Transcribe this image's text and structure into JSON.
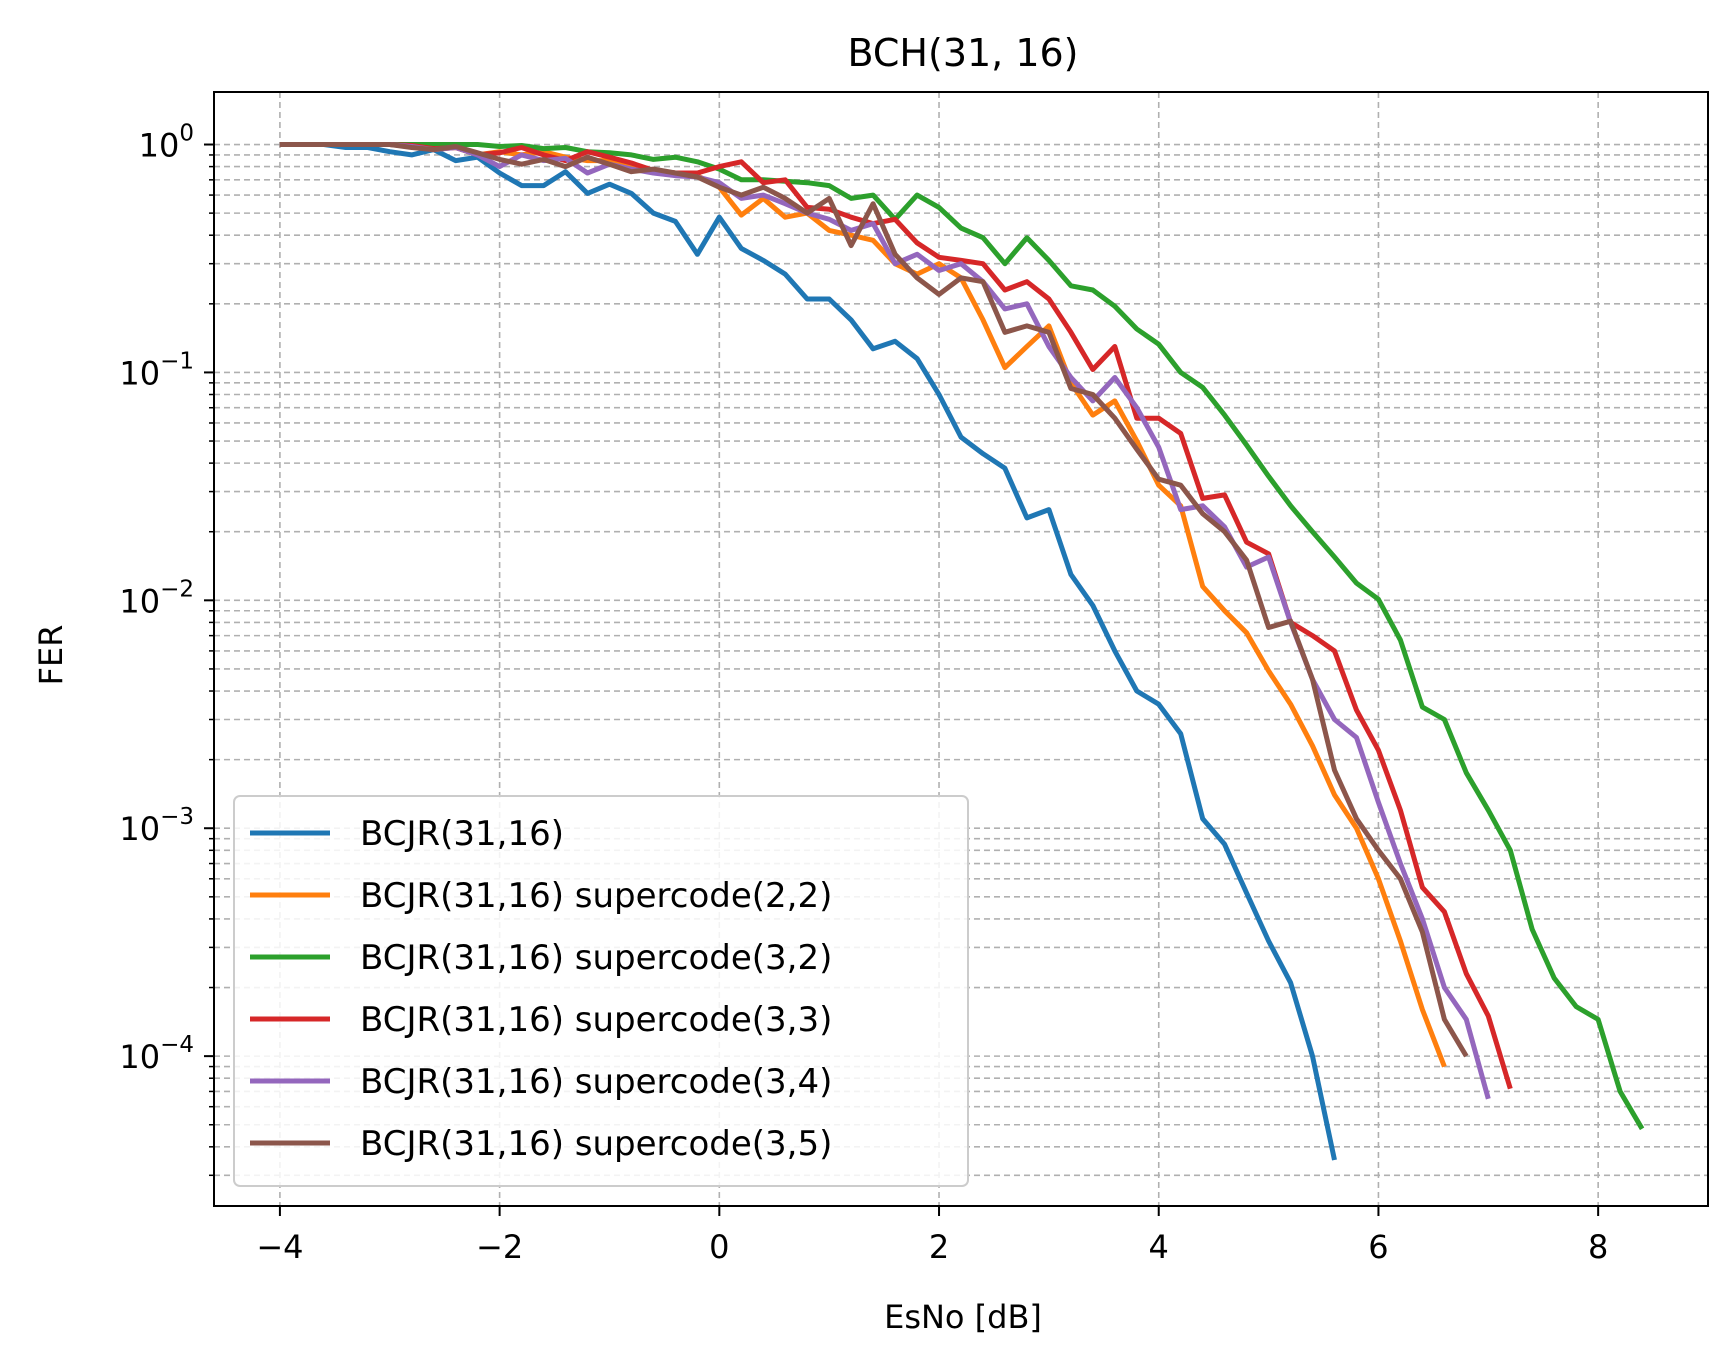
{
  "chart_data": {
    "type": "line",
    "title": "BCH(31, 16)",
    "xlabel": "EsNo [dB]",
    "ylabel": "FER",
    "xlim": [
      -4.6,
      9.0
    ],
    "ylim": [
      2.2e-05,
      1.7
    ],
    "yscale": "log",
    "grid": true,
    "legend_position": "lower-left",
    "x_ticks": [
      -4,
      -2,
      0,
      2,
      4,
      6,
      8
    ],
    "x_tick_labels": [
      "−4",
      "−2",
      "0",
      "2",
      "4",
      "6",
      "8"
    ],
    "y_ticks": [
      {
        "value": 1,
        "base": "10",
        "exp": "0"
      },
      {
        "value": 0.1,
        "base": "10",
        "exp": "−1"
      },
      {
        "value": 0.01,
        "base": "10",
        "exp": "−2"
      },
      {
        "value": 0.001,
        "base": "10",
        "exp": "−3"
      },
      {
        "value": 0.0001,
        "base": "10",
        "exp": "−4"
      }
    ],
    "series": [
      {
        "name": "BCJR(31,16)",
        "color": "#1f77b4",
        "x": [
          -4,
          -3.8,
          -3.6,
          -3.4,
          -3.2,
          -3,
          -2.8,
          -2.6,
          -2.4,
          -2.2,
          -2,
          -1.8,
          -1.6,
          -1.4,
          -1.2,
          -1,
          -0.8,
          -0.6,
          -0.4,
          -0.2,
          0,
          0.2,
          0.4,
          0.6,
          0.8,
          1,
          1.2,
          1.4,
          1.6,
          1.8,
          2,
          2.2,
          2.4,
          2.6,
          2.8,
          3,
          3.2,
          3.4,
          3.6,
          3.8,
          4,
          4.2,
          4.4,
          4.6,
          4.8,
          5,
          5.2,
          5.4,
          5.6
        ],
        "y": [
          1,
          1,
          1,
          0.97,
          0.97,
          0.93,
          0.9,
          0.95,
          0.85,
          0.88,
          0.75,
          0.66,
          0.66,
          0.76,
          0.61,
          0.67,
          0.61,
          0.5,
          0.46,
          0.33,
          0.48,
          0.35,
          0.31,
          0.27,
          0.21,
          0.21,
          0.17,
          0.127,
          0.137,
          0.115,
          0.08,
          0.052,
          0.044,
          0.038,
          0.023,
          0.025,
          0.013,
          0.0095,
          0.006,
          0.004,
          0.0035,
          0.0026,
          0.0011,
          0.00085,
          0.00052,
          0.00032,
          0.00021,
          0.0001,
          3.5e-05
        ]
      },
      {
        "name": "BCJR(31,16) supercode(2,2)",
        "color": "#ff7f0e",
        "x": [
          -4,
          -3.8,
          -3.6,
          -3.4,
          -3.2,
          -3,
          -2.8,
          -2.6,
          -2.4,
          -2.2,
          -2,
          -1.8,
          -1.6,
          -1.4,
          -1.2,
          -1,
          -0.8,
          -0.6,
          -0.4,
          -0.2,
          0,
          0.2,
          0.4,
          0.6,
          0.8,
          1,
          1.2,
          1.4,
          1.6,
          1.8,
          2,
          2.2,
          2.4,
          2.6,
          2.8,
          3,
          3.2,
          3.4,
          3.6,
          3.8,
          4,
          4.2,
          4.4,
          4.6,
          4.8,
          5,
          5.2,
          5.4,
          5.6,
          5.8,
          6,
          6.2,
          6.4,
          6.6
        ],
        "y": [
          1,
          1,
          1,
          1,
          1,
          1,
          0.98,
          0.95,
          0.97,
          0.9,
          0.93,
          0.9,
          0.93,
          0.88,
          0.85,
          0.85,
          0.8,
          0.77,
          0.75,
          0.73,
          0.65,
          0.49,
          0.58,
          0.48,
          0.5,
          0.42,
          0.4,
          0.38,
          0.3,
          0.27,
          0.3,
          0.26,
          0.17,
          0.105,
          0.13,
          0.16,
          0.09,
          0.065,
          0.075,
          0.05,
          0.032,
          0.026,
          0.0115,
          0.009,
          0.0072,
          0.0049,
          0.0035,
          0.0023,
          0.0014,
          0.001,
          0.0006,
          0.00032,
          0.00016,
          9e-05
        ]
      },
      {
        "name": "BCJR(31,16) supercode(3,2)",
        "color": "#2ca02c",
        "x": [
          -4,
          -3.8,
          -3.6,
          -3.4,
          -3.2,
          -3,
          -2.8,
          -2.6,
          -2.4,
          -2.2,
          -2,
          -1.8,
          -1.6,
          -1.4,
          -1.2,
          -1,
          -0.8,
          -0.6,
          -0.4,
          -0.2,
          0,
          0.2,
          0.4,
          0.6,
          0.8,
          1,
          1.2,
          1.4,
          1.6,
          1.8,
          2,
          2.2,
          2.4,
          2.6,
          2.8,
          3,
          3.2,
          3.4,
          3.6,
          3.8,
          4,
          4.2,
          4.4,
          4.6,
          4.8,
          5,
          5.2,
          5.4,
          5.6,
          5.8,
          6,
          6.2,
          6.4,
          6.6,
          6.8,
          7,
          7.2,
          7.4,
          7.6,
          7.8,
          8,
          8.2,
          8.4
        ],
        "y": [
          1,
          1,
          1,
          1,
          1,
          1,
          1,
          1,
          1,
          1,
          0.98,
          0.99,
          0.96,
          0.97,
          0.93,
          0.92,
          0.9,
          0.86,
          0.88,
          0.84,
          0.78,
          0.7,
          0.7,
          0.69,
          0.68,
          0.66,
          0.58,
          0.6,
          0.47,
          0.6,
          0.53,
          0.43,
          0.39,
          0.3,
          0.39,
          0.31,
          0.24,
          0.23,
          0.195,
          0.155,
          0.133,
          0.1,
          0.086,
          0.065,
          0.048,
          0.035,
          0.026,
          0.02,
          0.0155,
          0.0119,
          0.0101,
          0.0067,
          0.0034,
          0.003,
          0.00175,
          0.0012,
          0.0008,
          0.00036,
          0.00022,
          0.000165,
          0.000145,
          7e-05,
          4.8e-05
        ]
      },
      {
        "name": "BCJR(31,16) supercode(3,3)",
        "color": "#d62728",
        "x": [
          -4,
          -3.8,
          -3.6,
          -3.4,
          -3.2,
          -3,
          -2.8,
          -2.6,
          -2.4,
          -2.2,
          -2,
          -1.8,
          -1.6,
          -1.4,
          -1.2,
          -1,
          -0.8,
          -0.6,
          -0.4,
          -0.2,
          0,
          0.2,
          0.4,
          0.6,
          0.8,
          1,
          1.2,
          1.4,
          1.6,
          1.8,
          2,
          2.2,
          2.4,
          2.6,
          2.8,
          3,
          3.2,
          3.4,
          3.6,
          3.8,
          4,
          4.2,
          4.4,
          4.6,
          4.8,
          5,
          5.2,
          5.4,
          5.6,
          5.8,
          6,
          6.2,
          6.4,
          6.6,
          6.8,
          7,
          7.2
        ],
        "y": [
          1,
          1,
          1,
          1,
          1,
          1,
          0.99,
          0.96,
          0.97,
          0.9,
          0.92,
          0.97,
          0.9,
          0.85,
          0.93,
          0.88,
          0.83,
          0.77,
          0.75,
          0.75,
          0.8,
          0.84,
          0.68,
          0.7,
          0.53,
          0.52,
          0.48,
          0.45,
          0.47,
          0.37,
          0.32,
          0.31,
          0.3,
          0.23,
          0.25,
          0.21,
          0.15,
          0.103,
          0.13,
          0.063,
          0.063,
          0.054,
          0.028,
          0.029,
          0.018,
          0.016,
          0.008,
          0.007,
          0.006,
          0.0033,
          0.0022,
          0.0012,
          0.00055,
          0.00043,
          0.00023,
          0.00015,
          7.2e-05
        ]
      },
      {
        "name": "BCJR(31,16) supercode(3,4)",
        "color": "#9467bd",
        "x": [
          -4,
          -3.8,
          -3.6,
          -3.4,
          -3.2,
          -3,
          -2.8,
          -2.6,
          -2.4,
          -2.2,
          -2,
          -1.8,
          -1.6,
          -1.4,
          -1.2,
          -1,
          -0.8,
          -0.6,
          -0.4,
          -0.2,
          0,
          0.2,
          0.4,
          0.6,
          0.8,
          1,
          1.2,
          1.4,
          1.6,
          1.8,
          2,
          2.2,
          2.4,
          2.6,
          2.8,
          3,
          3.2,
          3.4,
          3.6,
          3.8,
          4,
          4.2,
          4.4,
          4.6,
          4.8,
          5,
          5.2,
          5.4,
          5.6,
          5.8,
          6,
          6.2,
          6.4,
          6.6,
          6.8,
          7
        ],
        "y": [
          1,
          1,
          1,
          1,
          1,
          1,
          0.98,
          0.95,
          0.97,
          0.9,
          0.8,
          0.9,
          0.85,
          0.87,
          0.75,
          0.82,
          0.78,
          0.75,
          0.73,
          0.72,
          0.68,
          0.58,
          0.6,
          0.55,
          0.5,
          0.47,
          0.42,
          0.45,
          0.3,
          0.33,
          0.28,
          0.3,
          0.25,
          0.19,
          0.2,
          0.13,
          0.095,
          0.075,
          0.095,
          0.07,
          0.047,
          0.025,
          0.026,
          0.021,
          0.014,
          0.0155,
          0.008,
          0.0045,
          0.003,
          0.0025,
          0.0013,
          0.0007,
          0.0004,
          0.0002,
          0.000145,
          6.5e-05
        ]
      },
      {
        "name": "BCJR(31,16) supercode(3,5)",
        "color": "#8c564b",
        "x": [
          -4,
          -3.8,
          -3.6,
          -3.4,
          -3.2,
          -3,
          -2.8,
          -2.6,
          -2.4,
          -2.2,
          -2,
          -1.8,
          -1.6,
          -1.4,
          -1.2,
          -1,
          -0.8,
          -0.6,
          -0.4,
          -0.2,
          0,
          0.2,
          0.4,
          0.6,
          0.8,
          1,
          1.2,
          1.4,
          1.6,
          1.8,
          2,
          2.2,
          2.4,
          2.6,
          2.8,
          3,
          3.2,
          3.4,
          3.6,
          3.8,
          4,
          4.2,
          4.4,
          4.6,
          4.8,
          5,
          5.2,
          5.4,
          5.6,
          5.8,
          6,
          6.2,
          6.4,
          6.6,
          6.8
        ],
        "y": [
          1,
          1,
          1,
          1,
          1,
          1,
          0.97,
          0.95,
          0.98,
          0.92,
          0.86,
          0.82,
          0.86,
          0.8,
          0.88,
          0.82,
          0.76,
          0.78,
          0.75,
          0.72,
          0.65,
          0.6,
          0.65,
          0.58,
          0.5,
          0.58,
          0.36,
          0.55,
          0.33,
          0.26,
          0.22,
          0.26,
          0.25,
          0.15,
          0.16,
          0.15,
          0.085,
          0.08,
          0.063,
          0.046,
          0.034,
          0.032,
          0.024,
          0.02,
          0.015,
          0.0076,
          0.0081,
          0.0045,
          0.0018,
          0.0011,
          0.0008,
          0.0006,
          0.00035,
          0.000145,
          0.0001
        ]
      }
    ]
  }
}
